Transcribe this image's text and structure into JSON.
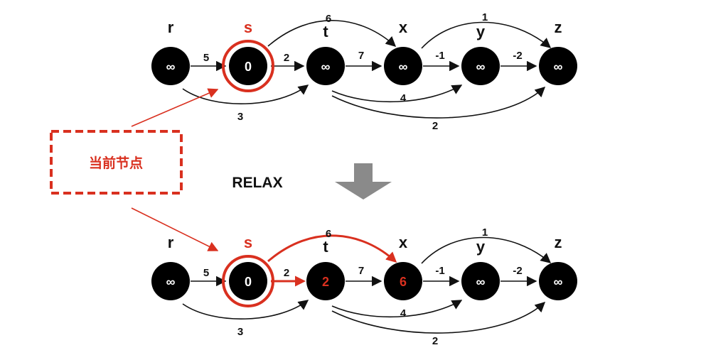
{
  "colors": {
    "node_fill": "#000000",
    "text_dark": "#111111",
    "highlight": "#d9301f",
    "arrow_gray": "#8a8a8a",
    "white": "#ffffff"
  },
  "annotation": {
    "current_node_label": "当前节点"
  },
  "transition": {
    "label": "RELAX",
    "icon": "down-arrow-icon"
  },
  "nodes": [
    {
      "id": "r",
      "label": "r"
    },
    {
      "id": "s",
      "label": "s"
    },
    {
      "id": "t",
      "label": "t"
    },
    {
      "id": "x",
      "label": "x"
    },
    {
      "id": "y",
      "label": "y"
    },
    {
      "id": "z",
      "label": "z"
    }
  ],
  "edges": [
    {
      "from": "r",
      "to": "s",
      "weight": "5"
    },
    {
      "from": "r",
      "to": "t",
      "weight": "3"
    },
    {
      "from": "s",
      "to": "t",
      "weight": "2"
    },
    {
      "from": "s",
      "to": "x",
      "weight": "6"
    },
    {
      "from": "t",
      "to": "x",
      "weight": "7"
    },
    {
      "from": "t",
      "to": "y",
      "weight": "4"
    },
    {
      "from": "t",
      "to": "z",
      "weight": "2"
    },
    {
      "from": "x",
      "to": "y",
      "weight": "-1"
    },
    {
      "from": "x",
      "to": "z",
      "weight": "1"
    },
    {
      "from": "y",
      "to": "z",
      "weight": "-2"
    }
  ],
  "states": [
    {
      "name": "before",
      "current": "s",
      "distances": {
        "r": "∞",
        "s": "0",
        "t": "∞",
        "x": "∞",
        "y": "∞",
        "z": "∞"
      },
      "updated": [],
      "relaxed_edges": []
    },
    {
      "name": "after",
      "current": "s",
      "distances": {
        "r": "∞",
        "s": "0",
        "t": "2",
        "x": "6",
        "y": "∞",
        "z": "∞"
      },
      "updated": [
        "t",
        "x"
      ],
      "relaxed_edges": [
        "s-t",
        "s-x"
      ]
    }
  ]
}
